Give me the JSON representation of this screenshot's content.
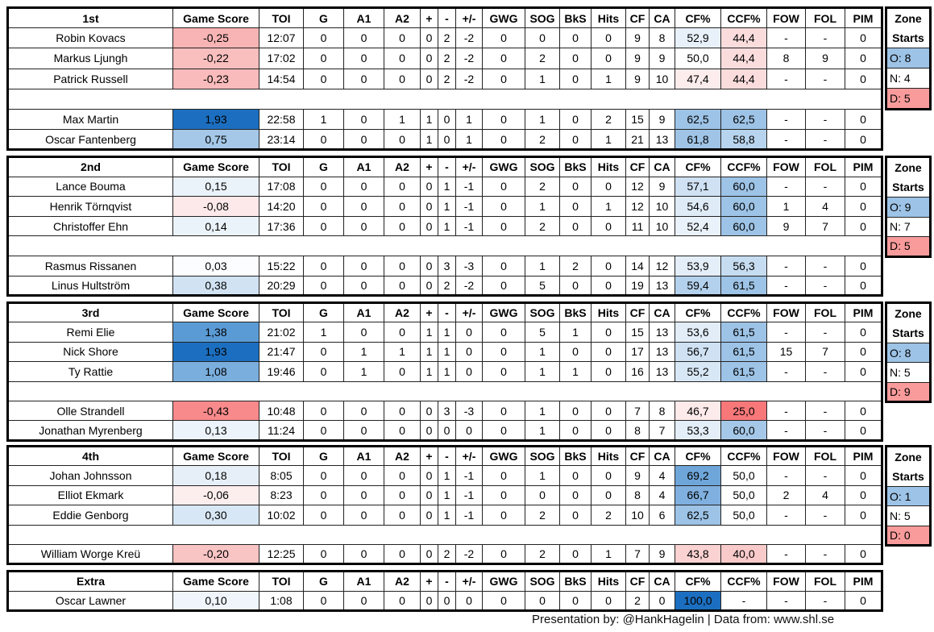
{
  "columns": [
    "Game Score",
    "TOI",
    "G",
    "A1",
    "A2",
    "+",
    "-",
    "+/-",
    "GWG",
    "SOG",
    "BkS",
    "Hits",
    "CF",
    "CA",
    "CF%",
    "CCF%",
    "FOW",
    "FOL",
    "PIM"
  ],
  "zone_header": {
    "line1": "Zone",
    "line2": "Starts"
  },
  "zone_colors": {
    "O": "#9dc3e6",
    "N": "#ffffff",
    "D": "#f99b9b"
  },
  "sections": [
    {
      "title": "1st",
      "zone": {
        "O": "O: 8",
        "N": "N: 4",
        "D": "D: 5"
      },
      "forwards": [
        {
          "name": "Robin Kovacs",
          "vals": [
            "-0,25",
            "12:07",
            "0",
            "0",
            "0",
            "0",
            "2",
            "-2",
            "0",
            "0",
            "0",
            "0",
            "9",
            "8",
            "52,9",
            "44,4",
            "-",
            "-",
            "0"
          ],
          "colors": {
            "gs": "#f8b4b4",
            "cf": "#e8f1fa",
            "ccf": "#fbdcdc"
          }
        },
        {
          "name": "Markus Ljungh",
          "vals": [
            "-0,22",
            "17:02",
            "0",
            "0",
            "0",
            "0",
            "2",
            "-2",
            "0",
            "2",
            "0",
            "0",
            "9",
            "9",
            "50,0",
            "44,4",
            "8",
            "9",
            "0"
          ],
          "colors": {
            "gs": "#f9bebe",
            "cf": "#ffffff",
            "ccf": "#fbdcdc"
          }
        },
        {
          "name": "Patrick Russell",
          "vals": [
            "-0,23",
            "14:54",
            "0",
            "0",
            "0",
            "0",
            "2",
            "-2",
            "0",
            "1",
            "0",
            "1",
            "9",
            "10",
            "47,4",
            "44,4",
            "-",
            "-",
            "0"
          ],
          "colors": {
            "gs": "#f9bbbb",
            "cf": "#fdecec",
            "ccf": "#fbdcdc"
          }
        }
      ],
      "defense": [
        {
          "name": "Max Martin",
          "vals": [
            "1,93",
            "22:58",
            "1",
            "0",
            "1",
            "1",
            "0",
            "1",
            "0",
            "1",
            "0",
            "2",
            "15",
            "9",
            "62,5",
            "62,5",
            "-",
            "-",
            "0"
          ],
          "colors": {
            "gs": "#1c6fc0",
            "cf": "#9dc3e6",
            "ccf": "#9dc3e6"
          }
        },
        {
          "name": "Oscar Fantenberg",
          "vals": [
            "0,75",
            "23:14",
            "0",
            "0",
            "0",
            "1",
            "0",
            "1",
            "0",
            "2",
            "0",
            "1",
            "21",
            "13",
            "61,8",
            "58,8",
            "-",
            "-",
            "0"
          ],
          "colors": {
            "gs": "#a5c8e8",
            "cf": "#9fc4e6",
            "ccf": "#b7d4ee"
          }
        }
      ]
    },
    {
      "title": "2nd",
      "zone": {
        "O": "O: 9",
        "N": "N: 7",
        "D": "D: 5"
      },
      "forwards": [
        {
          "name": "Lance Bouma",
          "vals": [
            "0,15",
            "17:08",
            "0",
            "0",
            "0",
            "0",
            "1",
            "-1",
            "0",
            "2",
            "0",
            "0",
            "12",
            "9",
            "57,1",
            "60,0",
            "-",
            "-",
            "0"
          ],
          "colors": {
            "gs": "#eaf2fa",
            "cf": "#cfe1f3",
            "ccf": "#9dc3e6"
          }
        },
        {
          "name": "Henrik Törnqvist",
          "vals": [
            "-0,08",
            "14:20",
            "0",
            "0",
            "0",
            "0",
            "1",
            "-1",
            "0",
            "1",
            "0",
            "1",
            "12",
            "10",
            "54,6",
            "60,0",
            "1",
            "4",
            "0"
          ],
          "colors": {
            "gs": "#fde9e9",
            "cf": "#dfebf7",
            "ccf": "#9dc3e6"
          }
        },
        {
          "name": "Christoffer Ehn",
          "vals": [
            "0,14",
            "17:36",
            "0",
            "0",
            "0",
            "0",
            "1",
            "-1",
            "0",
            "2",
            "0",
            "0",
            "11",
            "10",
            "52,4",
            "60,0",
            "9",
            "7",
            "0"
          ],
          "colors": {
            "gs": "#ebf3fa",
            "cf": "#e9f1fa",
            "ccf": "#9dc3e6"
          }
        }
      ],
      "defense": [
        {
          "name": "Rasmus Rissanen",
          "vals": [
            "0,03",
            "15:22",
            "0",
            "0",
            "0",
            "0",
            "3",
            "-3",
            "0",
            "1",
            "2",
            "0",
            "14",
            "12",
            "53,9",
            "56,3",
            "-",
            "-",
            "0"
          ],
          "colors": {
            "gs": "#fbfdff",
            "cf": "#e4eef8",
            "ccf": "#c6dcf0"
          }
        },
        {
          "name": "Linus Hultström",
          "vals": [
            "0,38",
            "20:29",
            "0",
            "0",
            "0",
            "0",
            "2",
            "-2",
            "0",
            "5",
            "0",
            "0",
            "19",
            "13",
            "59,4",
            "61,5",
            "-",
            "-",
            "0"
          ],
          "colors": {
            "gs": "#d1e3f3",
            "cf": "#b3d1ec",
            "ccf": "#9dc3e6"
          }
        }
      ]
    },
    {
      "title": "3rd",
      "zone": {
        "O": "O: 8",
        "N": "N: 5",
        "D": "D: 9"
      },
      "forwards": [
        {
          "name": "Remi Elie",
          "vals": [
            "1,38",
            "21:02",
            "1",
            "0",
            "0",
            "1",
            "1",
            "0",
            "0",
            "5",
            "1",
            "0",
            "15",
            "13",
            "53,6",
            "61,5",
            "-",
            "-",
            "0"
          ],
          "colors": {
            "gs": "#5b9bd5",
            "cf": "#e2edf8",
            "ccf": "#9dc3e6"
          }
        },
        {
          "name": "Nick Shore",
          "vals": [
            "1,93",
            "21:47",
            "0",
            "1",
            "1",
            "1",
            "1",
            "0",
            "0",
            "1",
            "0",
            "0",
            "17",
            "13",
            "56,7",
            "61,5",
            "15",
            "7",
            "0"
          ],
          "colors": {
            "gs": "#1c6fc0",
            "cf": "#cfe1f3",
            "ccf": "#9dc3e6"
          }
        },
        {
          "name": "Ty Rattie",
          "vals": [
            "1,08",
            "19:46",
            "0",
            "1",
            "0",
            "1",
            "1",
            "0",
            "0",
            "1",
            "1",
            "0",
            "16",
            "13",
            "55,2",
            "61,5",
            "-",
            "-",
            "0"
          ],
          "colors": {
            "gs": "#7aaedd",
            "cf": "#d8e7f5",
            "ccf": "#9dc3e6"
          }
        }
      ],
      "defense": [
        {
          "name": "Olle Strandell",
          "vals": [
            "-0,43",
            "10:48",
            "0",
            "0",
            "0",
            "0",
            "3",
            "-3",
            "0",
            "1",
            "0",
            "0",
            "7",
            "8",
            "46,7",
            "25,0",
            "-",
            "-",
            "0"
          ],
          "colors": {
            "gs": "#f88a8b",
            "cf": "#fdeaea",
            "ccf": "#f8787a"
          }
        },
        {
          "name": "Jonathan Myrenberg",
          "vals": [
            "0,13",
            "11:24",
            "0",
            "0",
            "0",
            "0",
            "0",
            "0",
            "0",
            "1",
            "0",
            "0",
            "8",
            "7",
            "53,3",
            "60,0",
            "-",
            "-",
            "0"
          ],
          "colors": {
            "gs": "#ecf3fa",
            "cf": "#e4eef8",
            "ccf": "#a5c8e8"
          }
        }
      ]
    },
    {
      "title": "4th",
      "zone": {
        "O": "O: 1",
        "N": "N: 5",
        "D": "D: 0"
      },
      "forwards": [
        {
          "name": "Johan Johnsson",
          "vals": [
            "0,18",
            "8:05",
            "0",
            "0",
            "0",
            "0",
            "1",
            "-1",
            "0",
            "1",
            "0",
            "0",
            "9",
            "4",
            "69,2",
            "50,0",
            "-",
            "-",
            "0"
          ],
          "colors": {
            "gs": "#e6eff8",
            "cf": "#6fa6da",
            "ccf": "#ffffff"
          }
        },
        {
          "name": "Elliot Ekmark",
          "vals": [
            "-0,06",
            "8:23",
            "0",
            "0",
            "0",
            "0",
            "1",
            "-1",
            "0",
            "0",
            "0",
            "0",
            "8",
            "4",
            "66,7",
            "50,0",
            "2",
            "4",
            "0"
          ],
          "colors": {
            "gs": "#fdeeee",
            "cf": "#80b0df",
            "ccf": "#ffffff"
          }
        },
        {
          "name": "Eddie Genborg",
          "vals": [
            "0,30",
            "10:02",
            "0",
            "0",
            "0",
            "0",
            "1",
            "-1",
            "0",
            "2",
            "0",
            "2",
            "10",
            "6",
            "62,5",
            "50,0",
            "-",
            "-",
            "0"
          ],
          "colors": {
            "gs": "#d8e7f5",
            "cf": "#9dc3e6",
            "ccf": "#ffffff"
          }
        }
      ],
      "defense": [
        {
          "name": "William Worge Kreü",
          "vals": [
            "-0,20",
            "12:25",
            "0",
            "0",
            "0",
            "0",
            "2",
            "-2",
            "0",
            "2",
            "0",
            "1",
            "7",
            "9",
            "43,8",
            "40,0",
            "-",
            "-",
            "0"
          ],
          "colors": {
            "gs": "#f9c4c4",
            "cf": "#fad2d2",
            "ccf": "#f9caca"
          }
        }
      ]
    },
    {
      "title": "Extra",
      "zone": null,
      "forwards": [
        {
          "name": "Oscar Lawner",
          "vals": [
            "0,10",
            "1:08",
            "0",
            "0",
            "0",
            "0",
            "0",
            "0",
            "0",
            "0",
            "0",
            "0",
            "2",
            "0",
            "100,0",
            "-",
            "-",
            "-",
            "0"
          ],
          "colors": {
            "gs": "#eff5fb",
            "cf": "#1c6fc0",
            "ccf": "#ffffff"
          }
        }
      ],
      "defense": null
    }
  ],
  "footer": "Presentation by: @HankHagelin | Data from: www.shl.se"
}
